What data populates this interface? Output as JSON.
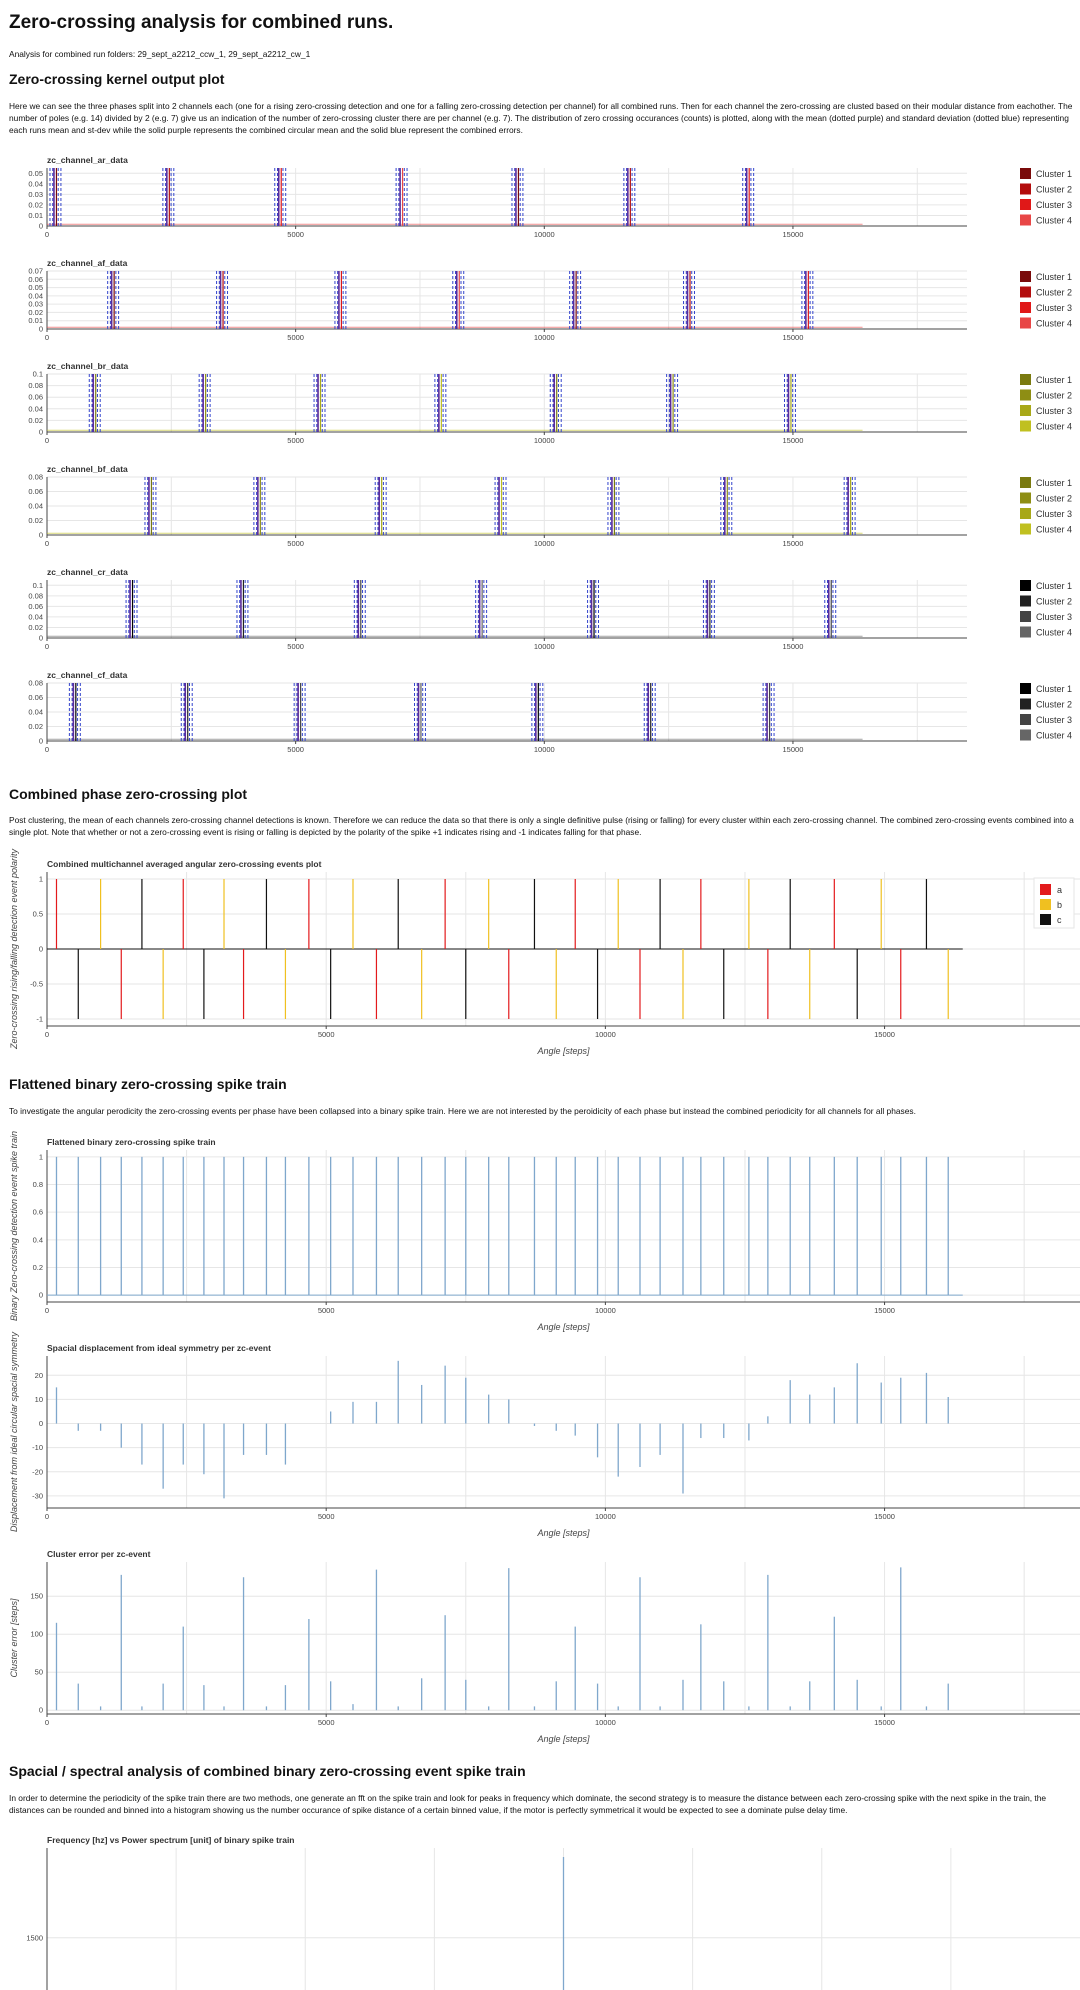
{
  "page": {
    "title": "Zero-crossing analysis for combined runs.",
    "subtitle": "Analysis for combined run folders: 29_sept_a2212_ccw_1, 29_sept_a2212_cw_1",
    "sections": {
      "kernel_heading": "Zero-crossing kernel output plot",
      "kernel_text": "Here we can see the three phases split into 2 channels each (one for a rising zero-crossing detection and one for a falling zero-crossing detection per channel) for all combined runs. Then for each channel the zero-crossing are clusted based on their modular distance from eachother. The number of poles (e.g. 14) divided by 2 (e.g. 7) give us an indication of the number of zero-crossing cluster there are per channel (e.g. 7). The distribution of zero crossing occurances (counts) is plotted, along with the mean (dotted purple) and standard deviation (dotted blue) representing each runs mean and st-dev while the solid purple represents the combined circular mean and the solid blue represent the combined errors.",
      "combined_heading": "Combined phase zero-crossing plot",
      "combined_text": "Post clustering, the mean of each channels zero-crossing channel detections is known. Therefore we can reduce the data so that there is only a single definitive pulse (rising or falling) for every cluster within each zero-crossing channel. The combined zero-crossing events combined into a single plot. Note that whether or not a zero-crossing event is rising or falling is depicted by the polarity of the spike +1 indicates rising and -1 indicates falling for that phase.",
      "flat_heading": "Flattened binary zero-crossing spike train",
      "flat_text": "To investigate the angular perodicity the zero-crossing events per phase have been collapsed into a binary spike train. Here we are not interested by the peroidicity of each phase but instead the combined periodicity for all channels for all phases.",
      "spectral_heading": "Spacial / spectral analysis of combined binary zero-crossing event spike train",
      "spectral_text": "In order to determine the periodicity of the spike train there are two methods, one generate an fft on the spike train and look for peaks in frequency which dominate, the second strategy is to measure the distance between each zero-crossing spike with the next spike in the train, the distances can be rounded and binned into a histogram showing us the number occurance of spike distance of a certain binned value, if the motor is perfectly symmetrical it would be expected to see a dominate pulse delay time."
    }
  },
  "colors": {
    "a": "#e31a1c",
    "b": "#f0c020",
    "c": "#111111",
    "ar_clusters": [
      "#7a0a0a",
      "#b30d0d",
      "#e01818",
      "#e84646"
    ],
    "br_clusters": [
      "#7a7a10",
      "#8e8e14",
      "#a8a818",
      "#c0c020"
    ],
    "cr_clusters": [
      "#000000",
      "#222222",
      "#444444",
      "#666666"
    ],
    "spike": "#7fa7cc",
    "mean": "#5b2c9a",
    "std": "#3344cc"
  },
  "chart_data": [
    {
      "type": "line",
      "id": "zc_ar",
      "title": "zc_channel_ar_data",
      "xlim": [
        0,
        18500
      ],
      "ylim": [
        0,
        0.055
      ],
      "xticks": [
        "0",
        "5000",
        "10000",
        "15000"
      ],
      "yticks": [
        "0",
        "0.01",
        "0.02",
        "0.03",
        "0.04",
        "0.05"
      ],
      "cluster_centers": [
        170,
        2440,
        4690,
        7130,
        9460,
        11710,
        14100
      ],
      "legend": [
        "Cluster 1",
        "Cluster 2",
        "Cluster 3",
        "Cluster 4"
      ],
      "palette": "ar_clusters"
    },
    {
      "type": "line",
      "id": "zc_af",
      "title": "zc_channel_af_data",
      "xlim": [
        0,
        18500
      ],
      "ylim": [
        0,
        0.07
      ],
      "xticks": [
        "0",
        "5000",
        "10000",
        "15000"
      ],
      "yticks": [
        "0",
        "0.01",
        "0.02",
        "0.03",
        "0.04",
        "0.05",
        "0.06",
        "0.07"
      ],
      "cluster_centers": [
        1330,
        3520,
        5900,
        8270,
        10620,
        12910,
        15290
      ],
      "legend": [
        "Cluster 1",
        "Cluster 2",
        "Cluster 3",
        "Cluster 4"
      ],
      "palette": "ar_clusters"
    },
    {
      "type": "line",
      "id": "zc_br",
      "title": "zc_channel_br_data",
      "xlim": [
        0,
        18500
      ],
      "ylim": [
        0,
        0.1
      ],
      "xticks": [
        "0",
        "5000",
        "10000",
        "15000"
      ],
      "yticks": [
        "0",
        "0.02",
        "0.04",
        "0.06",
        "0.08",
        "0.1"
      ],
      "cluster_centers": [
        960,
        3170,
        5480,
        7910,
        10230,
        12570,
        14940
      ],
      "legend": [
        "Cluster 1",
        "Cluster 2",
        "Cluster 3",
        "Cluster 4"
      ],
      "palette": "br_clusters"
    },
    {
      "type": "line",
      "id": "zc_bf",
      "title": "zc_channel_bf_data",
      "xlim": [
        0,
        18500
      ],
      "ylim": [
        0,
        0.08
      ],
      "xticks": [
        "0",
        "5000",
        "10000",
        "15000"
      ],
      "yticks": [
        "0",
        "0.02",
        "0.04",
        "0.06",
        "0.08"
      ],
      "cluster_centers": [
        2080,
        4270,
        6710,
        9120,
        11390,
        13660,
        16140
      ],
      "legend": [
        "Cluster 1",
        "Cluster 2",
        "Cluster 3",
        "Cluster 4"
      ],
      "palette": "br_clusters"
    },
    {
      "type": "line",
      "id": "zc_cr",
      "title": "zc_channel_cr_data",
      "xlim": [
        0,
        18500
      ],
      "ylim": [
        0,
        0.11
      ],
      "xticks": [
        "0",
        "5000",
        "10000",
        "15000"
      ],
      "yticks": [
        "0",
        "0.02",
        "0.04",
        "0.06",
        "0.08",
        "0.1"
      ],
      "cluster_centers": [
        1700,
        3930,
        6290,
        8730,
        10980,
        13310,
        15750
      ],
      "legend": [
        "Cluster 1",
        "Cluster 2",
        "Cluster 3",
        "Cluster 4"
      ],
      "palette": "cr_clusters"
    },
    {
      "type": "line",
      "id": "zc_cf",
      "title": "zc_channel_cf_data",
      "xlim": [
        0,
        18500
      ],
      "ylim": [
        0,
        0.08
      ],
      "xticks": [
        "0",
        "5000",
        "10000",
        "15000"
      ],
      "yticks": [
        "0",
        "0.02",
        "0.04",
        "0.06",
        "0.08"
      ],
      "cluster_centers": [
        560,
        2810,
        5080,
        7500,
        9860,
        12120,
        14510
      ],
      "legend": [
        "Cluster 1",
        "Cluster 2",
        "Cluster 3",
        "Cluster 4"
      ],
      "palette": "cr_clusters"
    },
    {
      "type": "bar",
      "id": "combined",
      "title": "Combined multichannel averaged angular zero-crossing events plot",
      "xlabel": "Angle [steps]",
      "ylabel": "Zero-crossing rising/falling detection event polarity",
      "xlim": [
        0,
        18500
      ],
      "ylim": [
        -1.1,
        1.1
      ],
      "xticks": [
        "0",
        "5000",
        "10000",
        "15000"
      ],
      "yticks": [
        "-1",
        "-0.5",
        "0",
        "0.5",
        "1"
      ],
      "legend": [
        "a",
        "b",
        "c"
      ],
      "series": [
        {
          "name": "a",
          "x_pos": [
            170,
            2440,
            4690,
            7130,
            9460,
            11710,
            14100
          ],
          "x_neg": [
            1330,
            3520,
            5900,
            8270,
            10620,
            12910,
            15290
          ]
        },
        {
          "name": "b",
          "x_pos": [
            960,
            3170,
            5480,
            7910,
            10230,
            12570,
            14940
          ],
          "x_neg": [
            2080,
            4270,
            6710,
            9120,
            11390,
            13660,
            16140
          ]
        },
        {
          "name": "c",
          "x_pos": [
            1700,
            3930,
            6290,
            8730,
            10980,
            13310,
            15750
          ],
          "x_neg": [
            560,
            2810,
            5080,
            7500,
            9860,
            12120,
            14510
          ]
        }
      ]
    },
    {
      "type": "bar",
      "id": "flat",
      "title": "Flattened binary zero-crossing spike train",
      "xlabel": "Angle [steps]",
      "ylabel": "Binary Zero-crossing detection event spike train",
      "xlim": [
        0,
        18500
      ],
      "ylim": [
        -0.05,
        1.05
      ],
      "xticks": [
        "0",
        "5000",
        "10000",
        "15000"
      ],
      "yticks": [
        "0",
        "0.2",
        "0.4",
        "0.6",
        "0.8",
        "1"
      ],
      "x": [
        170,
        560,
        960,
        1330,
        1700,
        2080,
        2440,
        2810,
        3170,
        3520,
        3930,
        4270,
        4690,
        5080,
        5480,
        5900,
        6290,
        6710,
        7130,
        7500,
        7910,
        8270,
        8730,
        9120,
        9460,
        9860,
        10230,
        10620,
        10980,
        11390,
        11710,
        12120,
        12570,
        12910,
        13310,
        13660,
        14100,
        14510,
        14940,
        15290,
        15750,
        16140
      ]
    },
    {
      "type": "bar",
      "id": "disp",
      "title": "Spacial displacement from ideal symmetry per zc-event",
      "xlabel": "Angle [steps]",
      "ylabel": "Displacement from ideal circular spacial symmetry",
      "xlim": [
        0,
        18500
      ],
      "ylim": [
        -35,
        28
      ],
      "xticks": [
        "0",
        "5000",
        "10000",
        "15000"
      ],
      "yticks": [
        "-30",
        "-20",
        "-10",
        "0",
        "10",
        "20"
      ],
      "x": [
        170,
        560,
        960,
        1330,
        1700,
        2080,
        2440,
        2810,
        3170,
        3520,
        3930,
        4270,
        4690,
        5080,
        5480,
        5900,
        6290,
        6710,
        7130,
        7500,
        7910,
        8270,
        8730,
        9120,
        9460,
        9860,
        10230,
        10620,
        10980,
        11390,
        11710,
        12120,
        12570,
        12910,
        13310,
        13660,
        14100,
        14510,
        14940,
        15290,
        15750,
        16140
      ],
      "values": [
        15,
        -3,
        -3,
        -10,
        -17,
        -27,
        -17,
        -21,
        -31,
        -13,
        -13,
        -17,
        0,
        5,
        9,
        9,
        26,
        16,
        24,
        19,
        12,
        10,
        -1,
        -3,
        -5,
        -14,
        -22,
        -18,
        -13,
        -29,
        -6,
        -6,
        -7,
        3,
        18,
        12,
        15,
        25,
        17,
        19,
        21,
        11
      ]
    },
    {
      "type": "bar",
      "id": "err",
      "title": "Cluster error per zc-event",
      "xlabel": "Angle [steps]",
      "ylabel": "Cluster error [steps]",
      "xlim": [
        0,
        18500
      ],
      "ylim": [
        -5,
        195
      ],
      "xticks": [
        "0",
        "5000",
        "10000",
        "15000"
      ],
      "yticks": [
        "0",
        "50",
        "100",
        "150"
      ],
      "x": [
        170,
        560,
        960,
        1330,
        1700,
        2080,
        2440,
        2810,
        3170,
        3520,
        3930,
        4270,
        4690,
        5080,
        5480,
        5900,
        6290,
        6710,
        7130,
        7500,
        7910,
        8270,
        8730,
        9120,
        9460,
        9860,
        10230,
        10620,
        10980,
        11390,
        11710,
        12120,
        12570,
        12910,
        13310,
        13660,
        14100,
        14510,
        14940,
        15290,
        15750,
        16140
      ],
      "values": [
        115,
        35,
        5,
        178,
        5,
        35,
        110,
        33,
        5,
        175,
        5,
        33,
        120,
        38,
        8,
        185,
        5,
        42,
        125,
        40,
        5,
        187,
        5,
        38,
        110,
        35,
        5,
        175,
        5,
        40,
        113,
        38,
        5,
        178,
        5,
        38,
        123,
        40,
        5,
        188,
        5,
        35
      ]
    },
    {
      "type": "bar",
      "id": "fft",
      "title": "Frequency [hz] vs Power spectrum [unit] of binary spike train",
      "xlim": [
        0,
        1
      ],
      "ylim": [
        1000,
        1900
      ],
      "yticks": [
        "1500"
      ],
      "x": [
        0.5
      ],
      "values": [
        1860
      ]
    }
  ]
}
